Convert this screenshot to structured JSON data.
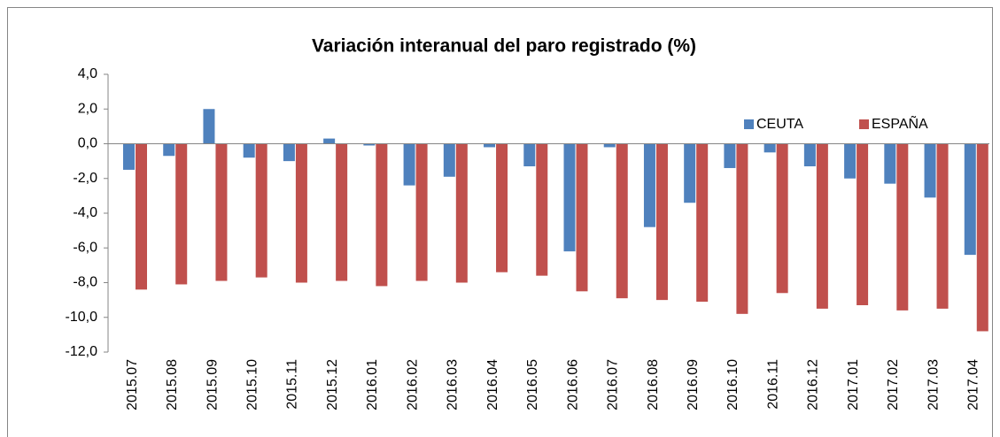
{
  "chart_data": {
    "type": "bar",
    "title": "Variación interanual del paro registrado (%)",
    "categories": [
      "2015.07",
      "2015.08",
      "2015.09",
      "2015.10",
      "2015.11",
      "2015.12",
      "2016.01",
      "2016.02",
      "2016.03",
      "2016.04",
      "2016.05",
      "2016.06",
      "2016.07",
      "2016.08",
      "2016.09",
      "2016.10",
      "2016.11",
      "2016.12",
      "2017.01",
      "2017.02",
      "2017.03",
      "2017.04"
    ],
    "series": [
      {
        "name": "CEUTA",
        "color": "#4f81bd",
        "values": [
          -1.5,
          -0.7,
          2.0,
          -0.8,
          -1.0,
          0.3,
          -0.1,
          -2.4,
          -1.9,
          -0.2,
          -1.3,
          -6.2,
          -0.2,
          -4.8,
          -3.4,
          -1.4,
          -0.5,
          -1.3,
          -2.0,
          -2.3,
          -3.1,
          -6.4
        ]
      },
      {
        "name": "ESPAÑA",
        "color": "#c0504d",
        "values": [
          -8.4,
          -8.1,
          -7.9,
          -7.7,
          -8.0,
          -7.9,
          -8.2,
          -7.9,
          -8.0,
          -7.4,
          -7.6,
          -8.5,
          -8.9,
          -9.0,
          -9.1,
          -9.8,
          -8.6,
          -9.5,
          -9.3,
          -9.6,
          -9.5,
          -10.8
        ]
      }
    ],
    "ylim": [
      -12,
      4
    ],
    "yticks": [
      {
        "value": 4,
        "label": "4,0"
      },
      {
        "value": 2,
        "label": "2,0"
      },
      {
        "value": 0,
        "label": "0,0"
      },
      {
        "value": -2,
        "label": "-2,0"
      },
      {
        "value": -4,
        "label": "-4,0"
      },
      {
        "value": -6,
        "label": "-6,0"
      },
      {
        "value": -8,
        "label": "-8,0"
      },
      {
        "value": -10,
        "label": "-10,0"
      },
      {
        "value": -12,
        "label": "-12,0"
      }
    ],
    "grid": false,
    "legend": "top-right"
  }
}
